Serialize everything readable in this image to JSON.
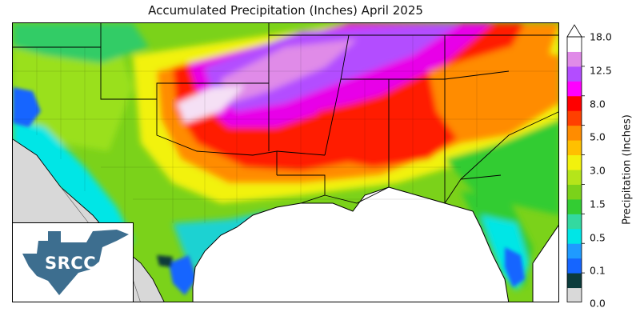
{
  "title": "Accumulated Precipitation (Inches) April 2025",
  "legend": {
    "title": "Precipitation (Inches)",
    "ticks": [
      "18.0",
      "12.5",
      "8.0",
      "5.0",
      "3.0",
      "1.5",
      "0.5",
      "0.1",
      "0.0"
    ],
    "bins": [
      {
        "color": "#d9d9d9"
      },
      {
        "color": "#0b3b3b"
      },
      {
        "color": "#1565ff"
      },
      {
        "color": "#1f9bff"
      },
      {
        "color": "#00e6e6"
      },
      {
        "color": "#33d9a0"
      },
      {
        "color": "#33cc33"
      },
      {
        "color": "#7bd21a"
      },
      {
        "color": "#b5e51a"
      },
      {
        "color": "#f2f20d"
      },
      {
        "color": "#ffc000"
      },
      {
        "color": "#ff8c00"
      },
      {
        "color": "#ff4000"
      },
      {
        "color": "#ff0000"
      },
      {
        "color": "#ff00ff"
      },
      {
        "color": "#b34dff"
      },
      {
        "color": "#e08be8"
      },
      {
        "color": "#ffffff"
      }
    ],
    "extend": "max"
  },
  "logo": {
    "text": "SRCC",
    "color": "#3d6e8f"
  },
  "colors": {
    "water": "#ffffff",
    "outside": "#d8d8d8",
    "boundary": "#000000"
  }
}
